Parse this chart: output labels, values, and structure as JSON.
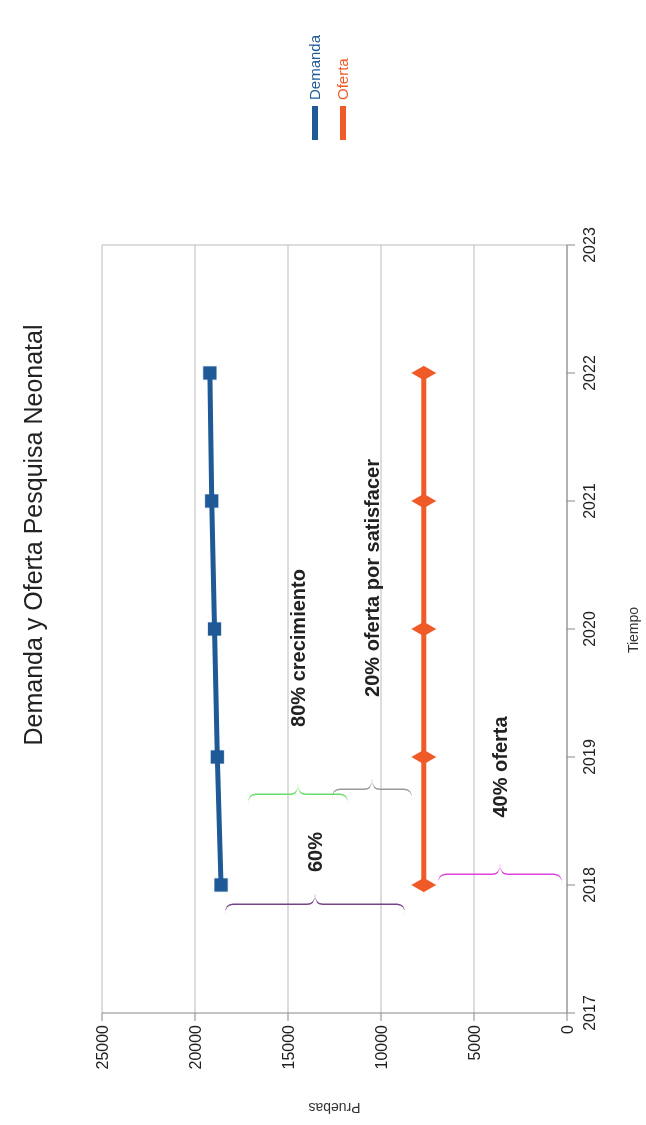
{
  "chart_data": {
    "type": "line",
    "title": "Demanda y Oferta Pesquisa Neonatal",
    "xlabel": "Pruebas",
    "ylabel": "Tiempo",
    "series": [
      {
        "name": "Demanda",
        "color": "#1f5a96",
        "marker": "square",
        "x": [
          18600,
          18800,
          18950,
          19100,
          19200
        ],
        "values": [
          2018,
          2019,
          2020,
          2021,
          2022
        ]
      },
      {
        "name": "Oferta",
        "color": "#f05a28",
        "marker": "diamond",
        "x": [
          7700,
          7700,
          7700,
          7700,
          7700
        ],
        "values": [
          2018,
          2019,
          2020,
          2021,
          2022
        ]
      }
    ],
    "xlim": [
      25000,
      0
    ],
    "xticks": [
      25000,
      20000,
      15000,
      10000,
      5000,
      0
    ],
    "ylim": [
      2017,
      2023
    ],
    "yticks": [
      2017,
      2018,
      2019,
      2020,
      2021,
      2022,
      2023
    ],
    "grid": "x",
    "legend": "right",
    "line_style": "solid",
    "annotations": [
      "80% crecimiento",
      "20% oferta por satisfacer",
      "60%",
      "40% oferta"
    ]
  }
}
